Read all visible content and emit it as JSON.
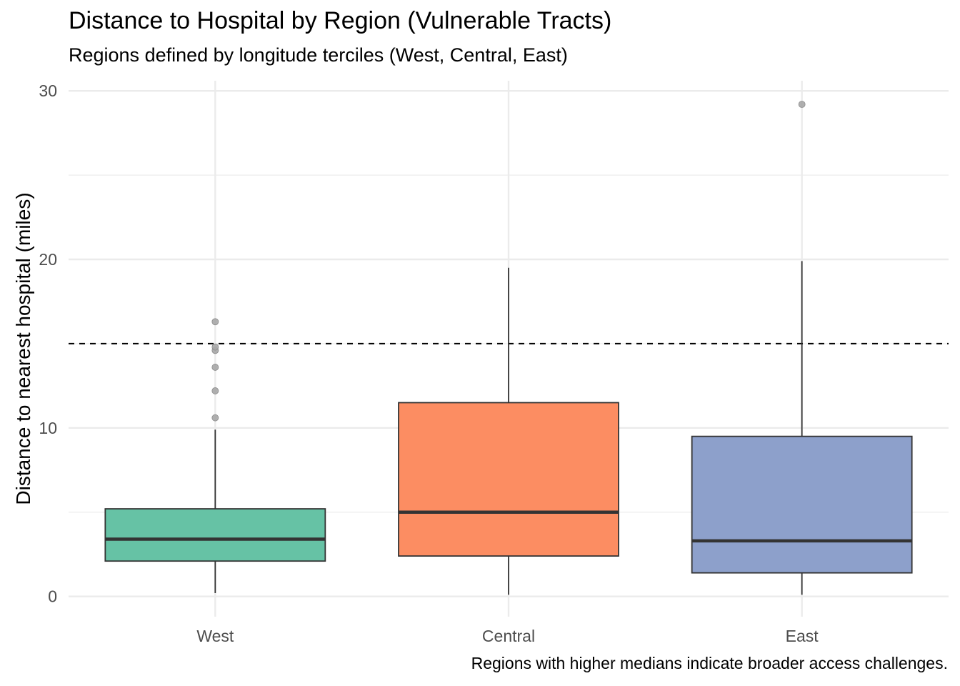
{
  "chart_data": {
    "type": "boxplot",
    "title": "Distance to Hospital by Region (Vulnerable Tracts)",
    "subtitle": "Regions defined by longitude terciles (West, Central, East)",
    "caption": "Regions with higher medians indicate broader access challenges.",
    "xlabel": "",
    "ylabel": "Distance to nearest hospital (miles)",
    "ylim": [
      -1.2,
      30.6
    ],
    "yticks": [
      0,
      10,
      20,
      30
    ],
    "ytick_labels": [
      "0",
      "10",
      "20",
      "30"
    ],
    "reference_line": {
      "y": 15,
      "style": "dashed",
      "color": "#000000"
    },
    "grid": true,
    "legend": "none",
    "categories": [
      "West",
      "Central",
      "East"
    ],
    "boxes": [
      {
        "category": "West",
        "whisker_low": 0.2,
        "q1": 2.1,
        "median": 3.4,
        "q3": 5.2,
        "whisker_high": 9.9,
        "outliers": [
          10.6,
          12.2,
          13.6,
          14.6,
          14.8,
          16.3
        ],
        "fill": "#66c2a5"
      },
      {
        "category": "Central",
        "whisker_low": 0.1,
        "q1": 2.4,
        "median": 5.0,
        "q3": 11.5,
        "whisker_high": 19.5,
        "outliers": [],
        "fill": "#fc8d62"
      },
      {
        "category": "East",
        "whisker_low": 0.1,
        "q1": 1.4,
        "median": 3.3,
        "q3": 9.5,
        "whisker_high": 19.9,
        "outliers": [
          29.2
        ],
        "fill": "#8da0cb"
      }
    ],
    "colors": {
      "box_line": "#333333",
      "median_line": "#333333",
      "outlier": "#a6a6a6",
      "grid": "#ebebeb"
    }
  }
}
